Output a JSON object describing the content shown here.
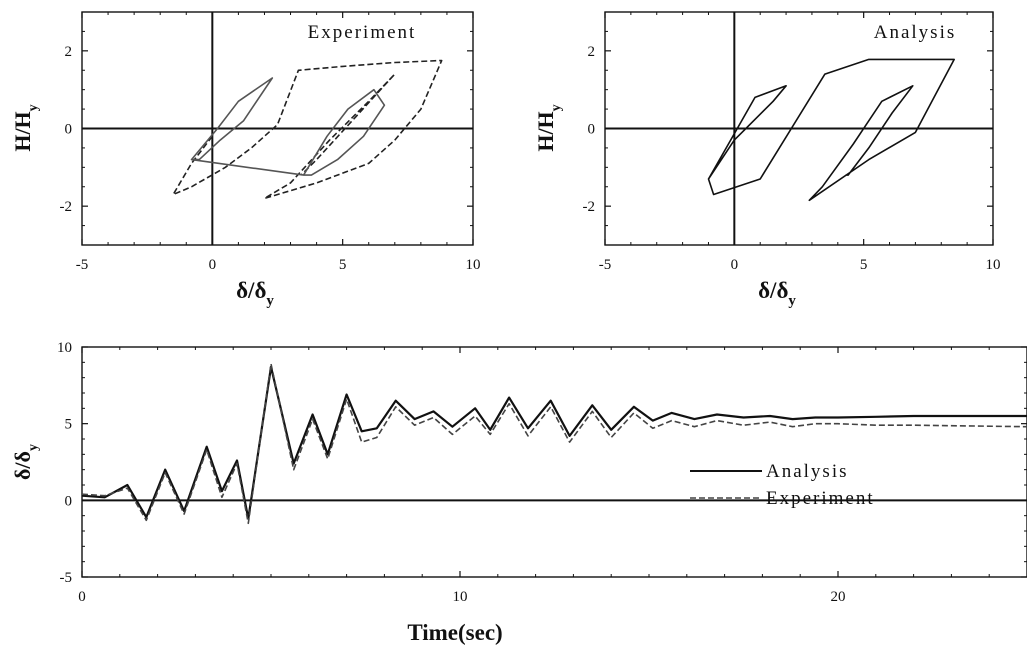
{
  "chart_data": [
    {
      "type": "line",
      "annotation": "Experiment",
      "xlabel": "δ/δ",
      "xlabel_sub": "y",
      "ylabel": "H/H",
      "ylabel_sub": "y",
      "xlim": [
        -5,
        10
      ],
      "ylim": [
        -3,
        3
      ],
      "xticks": [
        -5,
        0,
        5,
        10
      ],
      "yticks": [
        -2,
        0,
        2
      ],
      "series": [
        {
          "style": "dashed",
          "color": "#222222",
          "x": [
            0,
            -0.8,
            -1.5,
            -0.8,
            0.5,
            1.5,
            2.5,
            3.3,
            5.0,
            7.0,
            8.8,
            8.0,
            7.0,
            6.0,
            4.0,
            2.0,
            3.0,
            4.5,
            6.0,
            7.0,
            5.5,
            4.0,
            3.4
          ],
          "y": [
            -0.2,
            -0.9,
            -1.7,
            -1.5,
            -1.0,
            -0.5,
            0.1,
            1.5,
            1.6,
            1.7,
            1.75,
            0.5,
            -0.3,
            -0.9,
            -1.4,
            -1.8,
            -1.4,
            -0.3,
            0.7,
            1.4,
            0.3,
            -0.8,
            -1.2
          ]
        },
        {
          "style": "solid",
          "color": "#555555",
          "x": [
            -0.8,
            0.2,
            1.0,
            2.3,
            1.2,
            0.3,
            -0.5,
            -0.8,
            3.5,
            4.4,
            5.2,
            6.2,
            6.6,
            5.8,
            4.8,
            3.8,
            3.5
          ],
          "y": [
            -0.8,
            0.0,
            0.7,
            1.3,
            0.2,
            -0.3,
            -0.8,
            -0.8,
            -1.2,
            -0.2,
            0.5,
            1.0,
            0.6,
            -0.2,
            -0.8,
            -1.2,
            -1.2
          ]
        }
      ]
    },
    {
      "type": "line",
      "annotation": "Analysis",
      "xlabel": "δ/δ",
      "xlabel_sub": "y",
      "ylabel": "H/H",
      "ylabel_sub": "y",
      "xlim": [
        -5,
        10
      ],
      "ylim": [
        -3,
        3
      ],
      "xticks": [
        -5,
        0,
        5,
        10
      ],
      "yticks": [
        -2,
        0,
        2
      ],
      "series": [
        {
          "style": "solid",
          "color": "#111111",
          "x": [
            -1.0,
            0.8,
            2.0,
            1.5,
            0.0,
            -1.0,
            -0.8,
            1.0,
            3.5,
            5.2,
            8.5,
            7.0,
            5.2,
            2.9,
            3.4,
            4.6,
            5.7,
            6.9,
            6.1,
            5.2,
            4.4,
            4.3
          ],
          "y": [
            -1.3,
            0.8,
            1.1,
            0.7,
            -0.3,
            -1.3,
            -1.7,
            -1.3,
            1.4,
            1.78,
            1.78,
            -0.1,
            -0.8,
            -1.85,
            -1.5,
            -0.4,
            0.7,
            1.1,
            0.4,
            -0.5,
            -1.2,
            -1.2
          ]
        }
      ]
    },
    {
      "type": "line",
      "xlabel": "Time(sec)",
      "ylabel": "δ/δ",
      "ylabel_sub": "y",
      "xlim": [
        0,
        25
      ],
      "ylim": [
        -5,
        10
      ],
      "xticks": [
        0,
        10,
        20
      ],
      "yticks": [
        -5,
        0,
        5,
        10
      ],
      "legend_position": "right",
      "series": [
        {
          "name": "Analysis",
          "style": "solid",
          "color": "#111111",
          "x": [
            0,
            0.6,
            1.2,
            1.7,
            2.2,
            2.7,
            3.3,
            3.7,
            4.1,
            4.4,
            5.0,
            5.6,
            6.1,
            6.5,
            7.0,
            7.4,
            7.8,
            8.3,
            8.8,
            9.3,
            9.8,
            10.4,
            10.8,
            11.3,
            11.8,
            12.4,
            12.9,
            13.5,
            14.0,
            14.6,
            15.1,
            15.6,
            16.2,
            16.8,
            17.5,
            18.2,
            18.8,
            19.4,
            20.0,
            21.0,
            22.0,
            25.0
          ],
          "y": [
            0.3,
            0.2,
            1.0,
            -1.1,
            2.0,
            -0.7,
            3.5,
            0.6,
            2.6,
            -1.2,
            8.7,
            2.4,
            5.6,
            3.0,
            6.9,
            4.5,
            4.7,
            6.5,
            5.3,
            5.8,
            4.8,
            6.0,
            4.6,
            6.7,
            4.7,
            6.5,
            4.2,
            6.2,
            4.6,
            6.1,
            5.2,
            5.7,
            5.3,
            5.6,
            5.4,
            5.5,
            5.3,
            5.4,
            5.4,
            5.45,
            5.5,
            5.5
          ]
        },
        {
          "name": "Experiment",
          "style": "dashed",
          "color": "#444444",
          "x": [
            0,
            0.6,
            1.2,
            1.7,
            2.2,
            2.7,
            3.3,
            3.7,
            4.1,
            4.4,
            5.0,
            5.6,
            6.1,
            6.5,
            7.0,
            7.4,
            7.8,
            8.3,
            8.8,
            9.3,
            9.8,
            10.4,
            10.8,
            11.3,
            11.8,
            12.4,
            12.9,
            13.5,
            14.0,
            14.6,
            15.1,
            15.6,
            16.2,
            16.8,
            17.5,
            18.2,
            18.8,
            19.4,
            20.0,
            21.0,
            22.0,
            25.0
          ],
          "y": [
            0.4,
            0.3,
            0.8,
            -1.3,
            1.8,
            -0.9,
            3.3,
            0.2,
            2.4,
            -1.5,
            8.9,
            2.0,
            5.3,
            2.7,
            6.6,
            3.8,
            4.1,
            6.1,
            4.9,
            5.4,
            4.3,
            5.5,
            4.3,
            6.3,
            4.2,
            6.1,
            3.8,
            5.8,
            4.1,
            5.7,
            4.7,
            5.2,
            4.8,
            5.2,
            4.9,
            5.1,
            4.8,
            5.0,
            5.0,
            4.9,
            4.9,
            4.8
          ]
        }
      ]
    }
  ]
}
